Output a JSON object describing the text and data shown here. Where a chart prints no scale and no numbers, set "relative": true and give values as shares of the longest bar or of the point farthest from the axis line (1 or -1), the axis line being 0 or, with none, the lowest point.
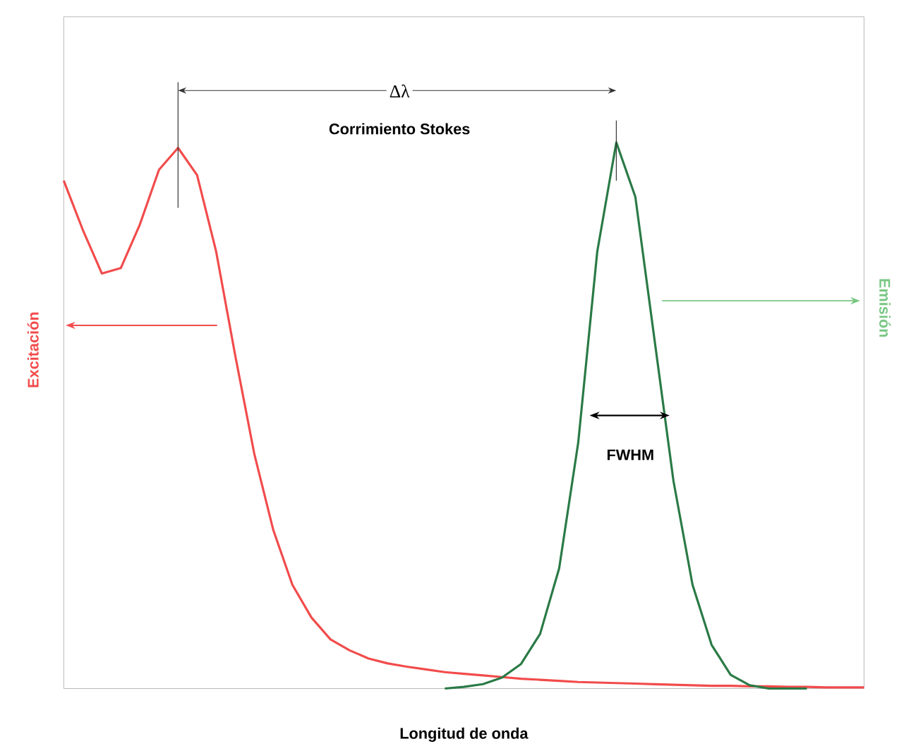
{
  "chart_data": {
    "type": "line",
    "relative": true,
    "xlabel": "Longitud de onda",
    "ylabel": "Excitación",
    "y2label": "Emisión",
    "annotations": [
      "Δλ",
      "Corrimiento Stokes",
      "FWHM"
    ],
    "categories": [
      null,
      null,
      null,
      null,
      null,
      null,
      null,
      null,
      null,
      null,
      null,
      null,
      null,
      null,
      null,
      null,
      null,
      null,
      null,
      null,
      null,
      null,
      null,
      null,
      null,
      null,
      null,
      null,
      null,
      null,
      null,
      null,
      null,
      null,
      null,
      null,
      null,
      null,
      null,
      null,
      null,
      null,
      null
    ],
    "series": [
      {
        "color": "#f24b4b",
        "values": [
          0.93,
          0.84,
          0.76,
          0.77,
          0.85,
          0.95,
          0.99,
          0.94,
          0.8,
          0.61,
          0.43,
          0.29,
          0.19,
          0.13,
          0.09,
          0.07,
          0.055,
          0.046,
          0.04,
          0.035,
          0.03,
          0.027,
          0.024,
          0.021,
          0.018,
          0.016,
          0.014,
          0.012,
          0.011,
          0.01,
          0.009,
          0.008,
          0.007,
          0.006,
          0.005,
          0.005,
          0.004,
          0.004,
          0.003,
          0.003,
          0.002,
          0.002,
          0.002
        ]
      },
      {
        "color": "#2a7a46",
        "values": [
          null,
          null,
          null,
          null,
          null,
          null,
          null,
          null,
          null,
          null,
          null,
          null,
          null,
          null,
          null,
          null,
          null,
          null,
          null,
          null,
          0,
          0.003,
          0.008,
          0.02,
          0.045,
          0.1,
          0.22,
          0.45,
          0.8,
          1.0,
          0.9,
          0.64,
          0.38,
          0.19,
          0.08,
          0.025,
          0.006,
          0,
          0,
          0,
          null,
          null,
          null
        ]
      }
    ]
  }
}
